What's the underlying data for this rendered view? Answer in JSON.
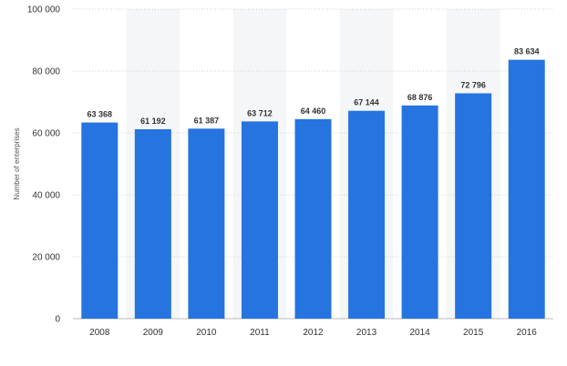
{
  "chart_data": {
    "type": "bar",
    "categories": [
      "2008",
      "2009",
      "2010",
      "2011",
      "2012",
      "2013",
      "2014",
      "2015",
      "2016"
    ],
    "values": [
      63368,
      61192,
      61387,
      63712,
      64460,
      67144,
      68876,
      72796,
      83634
    ],
    "value_labels": [
      "63 368",
      "61 192",
      "61 387",
      "63 712",
      "64 460",
      "67 144",
      "68 876",
      "72 796",
      "83 634"
    ],
    "title": "",
    "xlabel": "",
    "ylabel": "Number of enterprises",
    "ylim": [
      0,
      100000
    ],
    "yticks": [
      0,
      20000,
      40000,
      60000,
      80000,
      100000
    ],
    "ytick_labels": [
      "0",
      "20 000",
      "40 000",
      "60 000",
      "80 000",
      "100 000"
    ],
    "grid": true,
    "legend": "none",
    "colors": {
      "bar": "#2574e0",
      "band": "#f4f6f8",
      "grid": "#d0d0d0"
    }
  }
}
